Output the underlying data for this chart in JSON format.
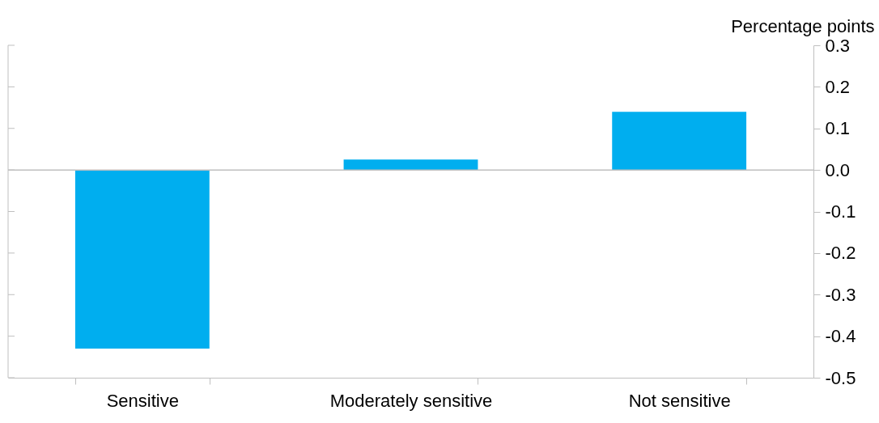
{
  "chart_data": {
    "type": "bar",
    "ylabel": "Percentage points",
    "categories": [
      "Sensitive",
      "Moderately sensitive",
      "Not sensitive"
    ],
    "values": [
      -0.43,
      0.025,
      0.14
    ],
    "color": "#00aeef",
    "ylim": [
      -0.5,
      0.3
    ],
    "yticks": [
      {
        "value": -0.5,
        "label": "-0.5"
      },
      {
        "value": -0.4,
        "label": "-0.4"
      },
      {
        "value": -0.3,
        "label": "-0.3"
      },
      {
        "value": -0.2,
        "label": "-0.2"
      },
      {
        "value": -0.1,
        "label": "-0.1"
      },
      {
        "value": 0,
        "label": "0.0"
      },
      {
        "value": 0.1,
        "label": "0.1"
      },
      {
        "value": 0.2,
        "label": "0.2"
      },
      {
        "value": 0.3,
        "label": "0.3"
      }
    ],
    "ref_lines": [
      {
        "axis": "y",
        "value": 0,
        "color": "#bfbfbf"
      }
    ]
  }
}
